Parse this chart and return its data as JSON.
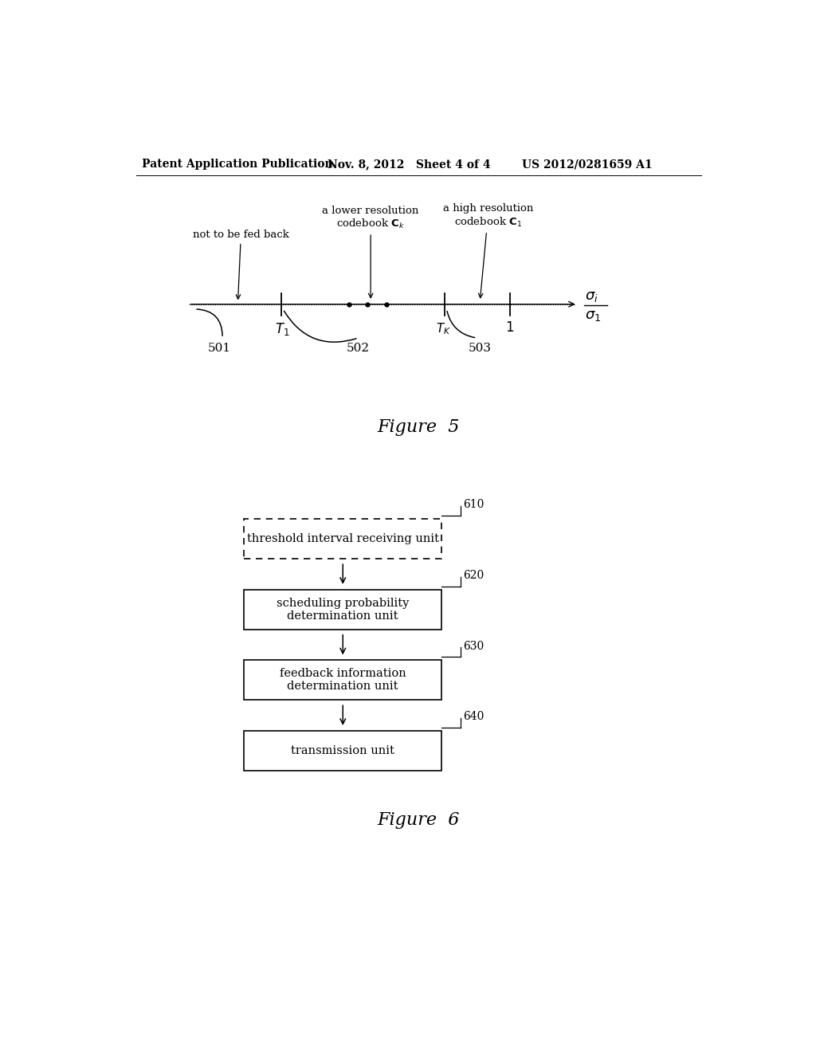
{
  "header_left": "Patent Application Publication",
  "header_mid": "Nov. 8, 2012   Sheet 4 of 4",
  "header_right": "US 2012/0281659 A1",
  "fig5_caption": "Figure  5",
  "fig6_caption": "Figure  6",
  "bg_color": "#ffffff",
  "line_color": "#000000",
  "box610_label": "threshold interval receiving unit",
  "box620_label": "scheduling probability\ndetermination unit",
  "box630_label": "feedback information\ndetermination unit",
  "box640_label": "transmission unit",
  "label610": "610",
  "label620": "620",
  "label630": "630",
  "label640": "640"
}
